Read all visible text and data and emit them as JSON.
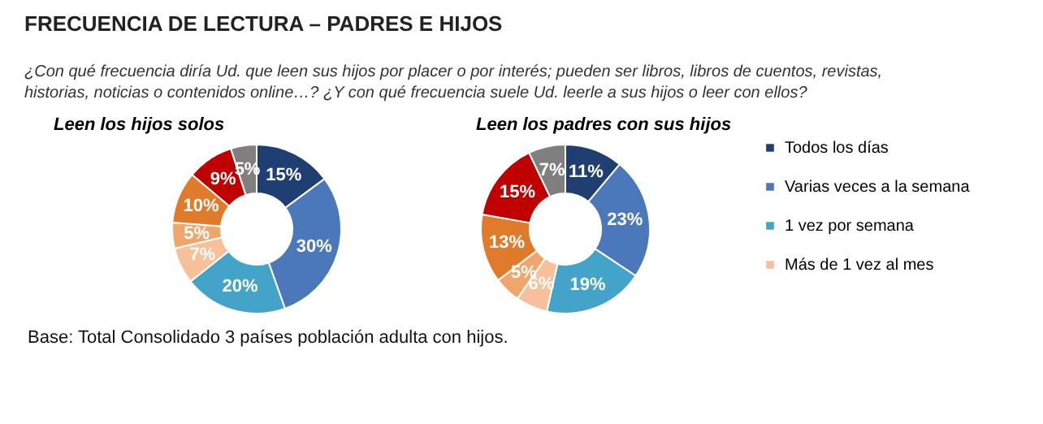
{
  "chart_data": [
    {
      "type": "other",
      "title": "FRECUENCIA  DE LECTURA – PADRES E HIJOS",
      "subtitle": "¿Con qué frecuencia diría Ud. que leen sus hijos por placer o por interés; pueden ser libros, libros de cuentos, revistas, historias, noticias o contenidos online…? ¿Y con qué frecuencia suele Ud. leerle a sus hijos o leer con ellos?",
      "annotations": [
        "Base: Total Consolidado 3 países población adulta con hijos."
      ]
    },
    {
      "type": "donut",
      "title": "Leen los hijos solos",
      "categories": [
        "Todos los días",
        "Varias veces a la semana",
        "1 vez por semana",
        "Más de 1 vez al mes",
        null,
        null,
        null,
        null
      ],
      "values": [
        15,
        30,
        20,
        7,
        5,
        10,
        9,
        5
      ],
      "value_labels": [
        "15%",
        "30%",
        "20%",
        "7%",
        "5%",
        "10%",
        "9%",
        "5%"
      ],
      "colors": [
        "#1f3f73",
        "#4a78ba",
        "#43a3c8",
        "#f6c19a",
        "#f0a56a",
        "#e07b2c",
        "#c00000",
        "#7f7f7f"
      ],
      "legend": "right"
    },
    {
      "type": "donut",
      "title": "Leen los padres con sus hijos",
      "categories": [
        null,
        null,
        null,
        null,
        null,
        null,
        null,
        null
      ],
      "values": [
        11,
        23,
        19,
        6,
        5,
        13,
        15,
        7
      ],
      "value_labels": [
        "11%",
        "23%",
        "19%",
        "6%",
        "5%",
        "13%",
        "15%",
        "7%"
      ],
      "colors": [
        "#1f3f73",
        "#4a78ba",
        "#43a3c8",
        "#f6c19a",
        "#f0a56a",
        "#e07b2c",
        "#c00000",
        "#7f7f7f"
      ]
    }
  ]
}
